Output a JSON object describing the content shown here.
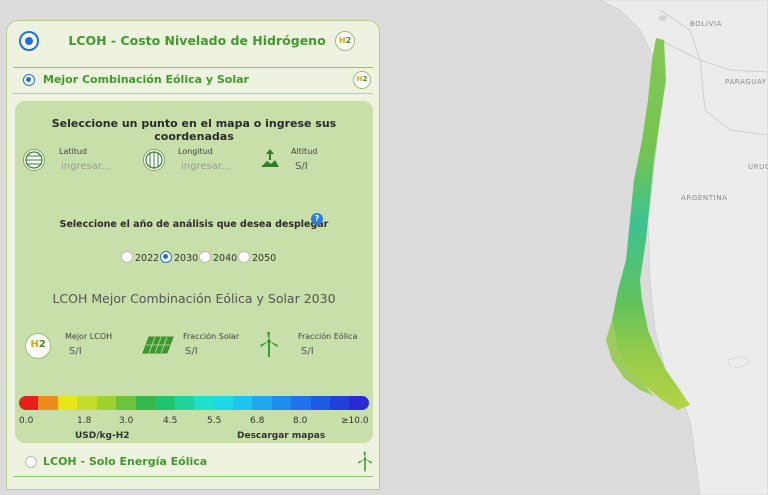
{
  "map": {
    "countries": [
      "BOLIVIA",
      "PARAGUAY",
      "ARGENTINA",
      "URUG"
    ]
  },
  "header": {
    "title": "LCOH - Costo Nivelado de Hidrógeno",
    "icon": "h2-icon"
  },
  "section": {
    "title": "Mejor Combinación Eólica y Solar"
  },
  "form": {
    "title": "Seleccione un punto en el mapa o ingrese sus coordenadas",
    "latitude_label": "Latitud",
    "latitude_placeholder": "ingresar...",
    "longitude_label": "Longitud",
    "longitude_placeholder": "ingresar...",
    "altitude_label": "Altitud",
    "altitude_value": "S/I"
  },
  "year_selector": {
    "question": "Seleccione el año de análisis que desea desplegar",
    "help": "?",
    "options": [
      "2022",
      "2030",
      "2040",
      "2050"
    ],
    "selected": "2030"
  },
  "results": {
    "title": "LCOH Mejor Combinación Eólica y Solar 2030",
    "best_label": "Mejor LCOH",
    "best_value": "S/I",
    "solar_label": "Fracción Solar",
    "solar_value": "S/I",
    "wind_label": "Fracción Eólica",
    "wind_value": "S/I"
  },
  "legend": {
    "colors": [
      "#e3201b",
      "#f08a1c",
      "#e8e41c",
      "#c4dc2a",
      "#9fd12f",
      "#6cc43a",
      "#34b84b",
      "#20c46e",
      "#1fd39a",
      "#1ee0cb",
      "#1ed8e8",
      "#1ec4ef",
      "#1ea9ef",
      "#1e8def",
      "#1e72ea",
      "#1e5ae4",
      "#2040dc",
      "#2a2ad4"
    ],
    "ticks": [
      "0.0",
      "1.8",
      "3.0",
      "4.5",
      "5.5",
      "6.8",
      "8.0",
      "≥10.0"
    ],
    "unit": "USD/kg-H2",
    "download": "Descargar mapas"
  },
  "other_section": {
    "title": "LCOH - Solo Energía Eólica"
  }
}
